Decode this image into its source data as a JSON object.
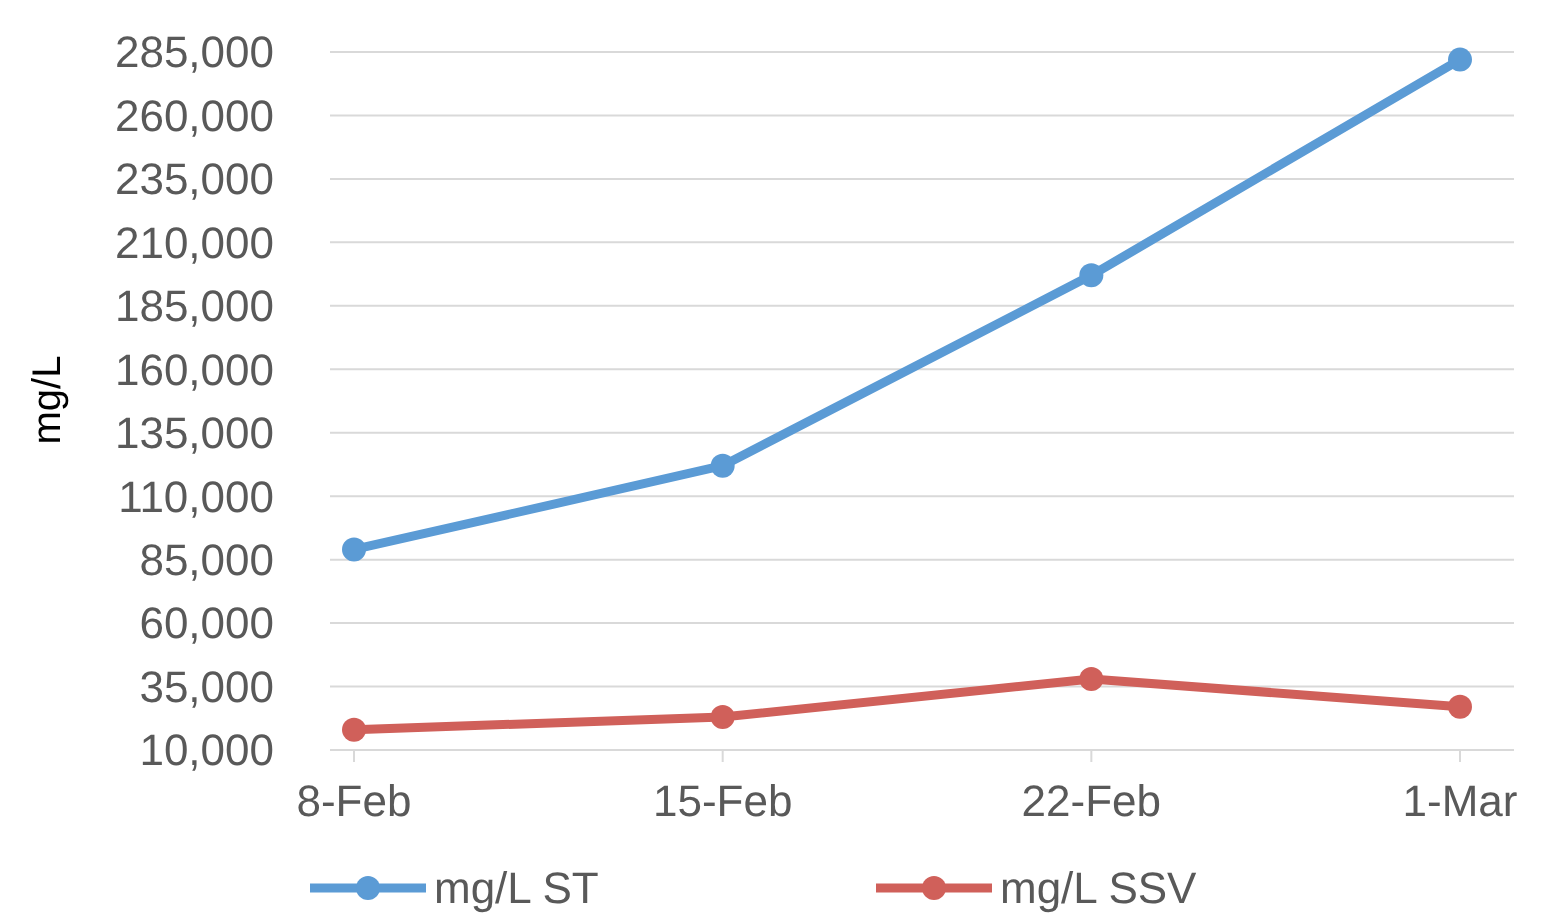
{
  "chart_data": {
    "type": "line",
    "ylabel": "mg/L",
    "categories": [
      "8-Feb",
      "15-Feb",
      "22-Feb",
      "1-Mar"
    ],
    "series": [
      {
        "name": "mg/L ST",
        "color": "#5b9bd5",
        "values": [
          89000,
          122000,
          197000,
          282000
        ]
      },
      {
        "name": "mg/L SSV",
        "color": "#d0605a",
        "values": [
          18000,
          23000,
          38000,
          27000
        ]
      }
    ],
    "ylim": [
      10000,
      285000
    ],
    "yticks": [
      {
        "value": 10000,
        "label": "10,000"
      },
      {
        "value": 35000,
        "label": "35,000"
      },
      {
        "value": 60000,
        "label": "60,000"
      },
      {
        "value": 85000,
        "label": "85,000"
      },
      {
        "value": 110000,
        "label": "110,000"
      },
      {
        "value": 135000,
        "label": "135,000"
      },
      {
        "value": 160000,
        "label": "160,000"
      },
      {
        "value": 185000,
        "label": "185,000"
      },
      {
        "value": 210000,
        "label": "210,000"
      },
      {
        "value": 235000,
        "label": "235,000"
      },
      {
        "value": 260000,
        "label": "260,000"
      },
      {
        "value": 285000,
        "label": "285,000"
      }
    ],
    "grid": "y",
    "legend": "bottom",
    "marker": "circle",
    "line_style": "solid"
  }
}
